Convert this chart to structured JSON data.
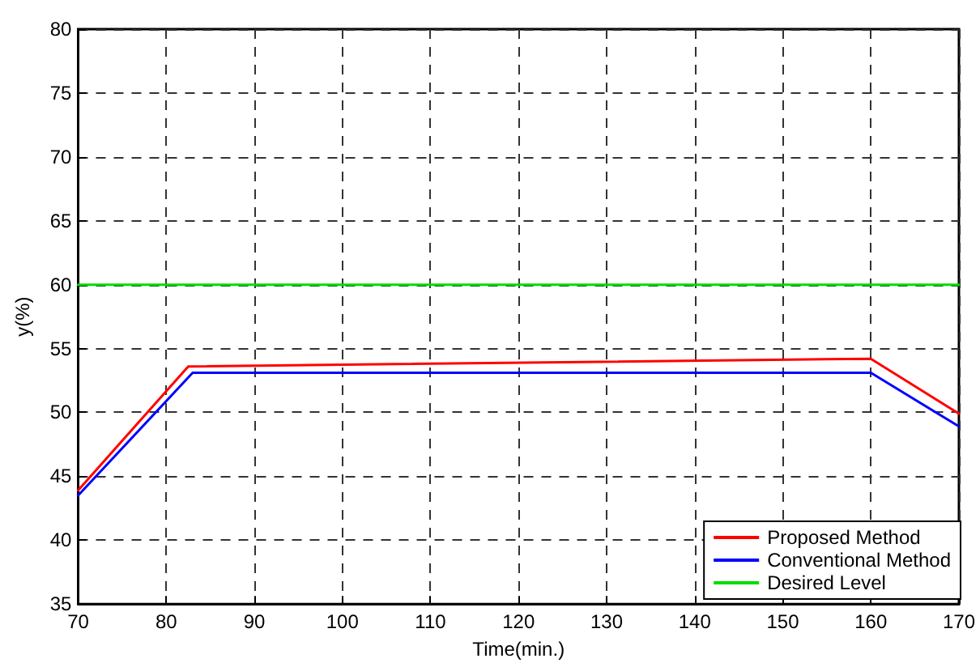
{
  "chart_data": {
    "type": "line",
    "xlabel": "Time(min.)",
    "ylabel": "y(%)",
    "xlim": [
      70,
      170
    ],
    "xticks": [
      70,
      80,
      90,
      100,
      110,
      120,
      130,
      140,
      150,
      160,
      170
    ],
    "ylim": [
      35,
      80
    ],
    "yticks": [
      35,
      40,
      45,
      50,
      55,
      60,
      65,
      70,
      75,
      80
    ],
    "grid": true,
    "legend": "bottom right",
    "marker": "none",
    "line_style": "solid",
    "series": [
      {
        "name": "Proposed Method",
        "color": "#ff0000",
        "x": [
          70,
          82.5,
          160,
          170
        ],
        "values": [
          43.9,
          53.6,
          54.2,
          49.9
        ]
      },
      {
        "name": "Conventional Method",
        "color": "#0000ff",
        "x": [
          70,
          83,
          160,
          170
        ],
        "values": [
          43.5,
          53.1,
          53.1,
          48.9
        ]
      },
      {
        "name": "Desired Level",
        "color": "#00dd00",
        "x": [
          70,
          170
        ],
        "values": [
          60,
          60
        ]
      }
    ]
  }
}
